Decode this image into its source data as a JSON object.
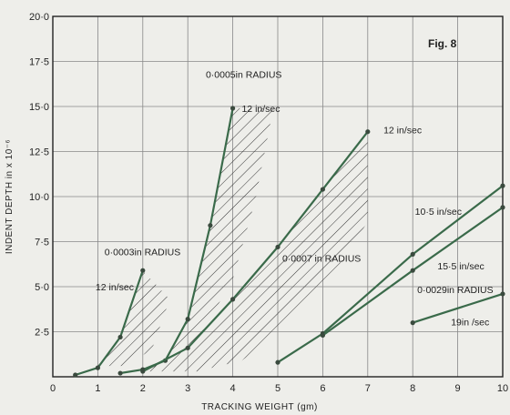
{
  "chart_data": {
    "type": "line",
    "title": "Fig. 8",
    "xlabel": "TRACKING WEIGHT (gm)",
    "ylabel": "INDENT DEPTH in x 10⁻⁶",
    "xlim": [
      0,
      10
    ],
    "ylim": [
      0,
      20
    ],
    "xticks": [
      0,
      1,
      2,
      3,
      4,
      5,
      6,
      7,
      8,
      9,
      10
    ],
    "xtick_labels": [
      "0",
      "1",
      "2",
      "3",
      "4",
      "5",
      "6",
      "7",
      "8",
      "9",
      "10"
    ],
    "yticks": [
      2.5,
      5,
      7.5,
      10,
      12.5,
      15,
      17.5,
      20
    ],
    "ytick_labels": [
      "2·5",
      "5·0",
      "7·5",
      "10·0",
      "12·5",
      "15·0",
      "17·5",
      "20·0"
    ],
    "grid": true,
    "line_color": "#3a6a4a",
    "series": [
      {
        "points": [
          [
            0.5,
            0.1
          ],
          [
            1.0,
            0.5
          ],
          [
            1.5,
            2.2
          ],
          [
            2.0,
            5.9
          ]
        ]
      },
      {
        "points": [
          [
            1.5,
            0.2
          ],
          [
            2.0,
            0.4
          ],
          [
            2.5,
            0.9
          ],
          [
            3.0,
            3.2
          ],
          [
            3.5,
            8.4
          ],
          [
            4.0,
            14.9
          ]
        ]
      },
      {
        "points": [
          [
            2.0,
            0.3
          ],
          [
            3.0,
            1.6
          ],
          [
            4.0,
            4.3
          ],
          [
            5.0,
            7.2
          ],
          [
            6.0,
            10.4
          ],
          [
            7.0,
            13.6
          ]
        ]
      },
      {
        "points": [
          [
            5.0,
            0.8
          ],
          [
            6.0,
            2.4
          ],
          [
            8.0,
            6.8
          ],
          [
            10.0,
            10.6
          ]
        ]
      },
      {
        "points": [
          [
            6.0,
            2.3
          ],
          [
            8.0,
            5.9
          ],
          [
            10.0,
            9.4
          ]
        ]
      },
      {
        "points": [
          [
            8.0,
            3.0
          ],
          [
            10.0,
            4.6
          ]
        ]
      }
    ],
    "annotations": [
      {
        "text": "0·0005in RADIUS",
        "x": 3.4,
        "y": 16.6
      },
      {
        "text": "12 in/sec",
        "x": 4.2,
        "y": 14.7
      },
      {
        "text": "12 in/sec",
        "x": 7.35,
        "y": 13.5
      },
      {
        "text": "10·5 in/sec",
        "x": 8.05,
        "y": 9.0
      },
      {
        "text": "0·0003in RADIUS",
        "x": 1.15,
        "y": 6.75
      },
      {
        "text": "12 in/sec",
        "x": 0.95,
        "y": 4.8
      },
      {
        "text": "0·0007 in RADIUS",
        "x": 5.1,
        "y": 6.4
      },
      {
        "text": "15·5 in/sec",
        "x": 8.55,
        "y": 5.95
      },
      {
        "text": "0·0029in RADIUS",
        "x": 8.1,
        "y": 4.65
      },
      {
        "text": "19in /sec",
        "x": 8.85,
        "y": 2.85
      }
    ]
  }
}
